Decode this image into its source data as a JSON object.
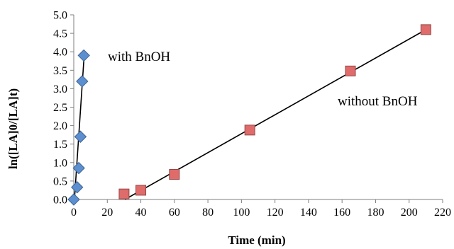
{
  "chart_data": {
    "type": "scatter",
    "title": "",
    "xlabel": "Time (min)",
    "ylabel": "ln([LA]0/[LA]t)",
    "xlim": [
      0,
      220
    ],
    "ylim": [
      0,
      5
    ],
    "x_ticks": [
      "0",
      "20",
      "40",
      "60",
      "80",
      "100",
      "120",
      "140",
      "160",
      "180",
      "200",
      "220"
    ],
    "y_ticks": [
      "0.0",
      "0.5",
      "1.0",
      "1.5",
      "2.0",
      "2.5",
      "3.0",
      "3.5",
      "4.0",
      "4.5",
      "5.0"
    ],
    "grid": false,
    "legend": "none",
    "series": [
      {
        "label": "with  BnOH",
        "marker": "diamond",
        "color": "#5b8fd0",
        "x": [
          0,
          2,
          3,
          4,
          5,
          6
        ],
        "y": [
          0.0,
          0.33,
          0.85,
          1.7,
          3.2,
          3.9
        ],
        "trendline": {
          "x": [
            0.4,
            6.2
          ],
          "y": [
            0.0,
            3.9
          ]
        }
      },
      {
        "label": "without BnOH",
        "marker": "square",
        "color": "#e06b6b",
        "x": [
          30,
          40,
          60,
          105,
          165,
          210
        ],
        "y": [
          0.15,
          0.25,
          0.68,
          1.88,
          3.48,
          4.6
        ],
        "trendline": {
          "x": [
            30.5,
            210
          ],
          "y": [
            0.0,
            4.6
          ]
        }
      }
    ]
  }
}
